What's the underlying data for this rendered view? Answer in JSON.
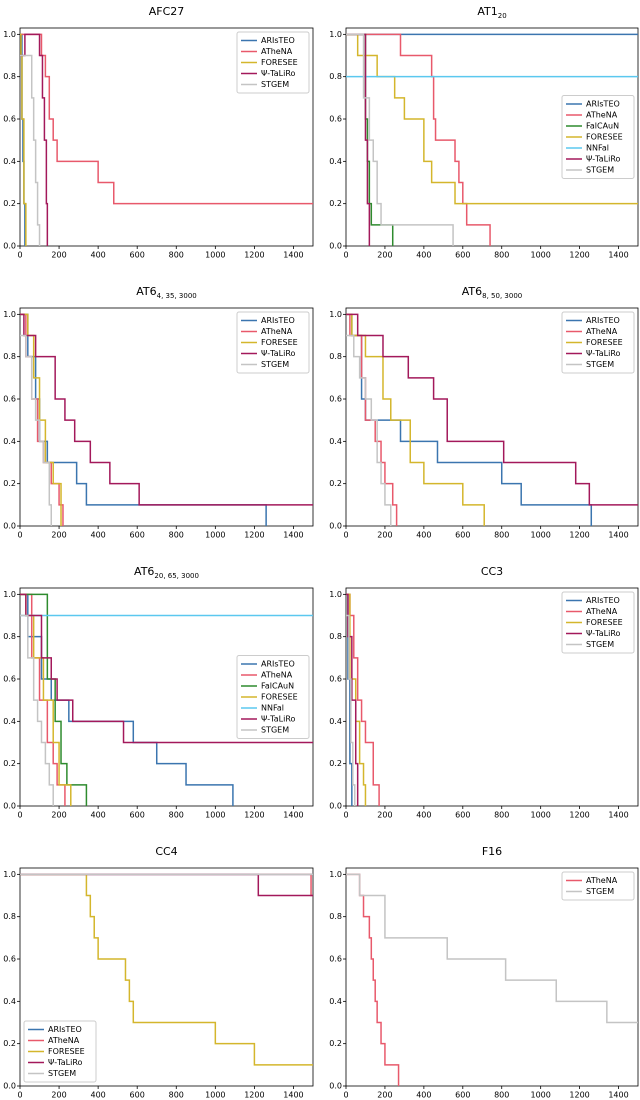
{
  "chart_data": [
    {
      "type": "step",
      "title": "AFC27",
      "xlim": [
        0,
        1500
      ],
      "ylim": [
        0,
        1.03
      ],
      "xticks": [
        0,
        200,
        400,
        600,
        800,
        1000,
        1200,
        1400
      ],
      "yticks": [
        {
          "value": 0,
          "label": "0.0"
        },
        0.2,
        0.4,
        0.6,
        0.8,
        {
          "value": 1,
          "label": "1.0"
        }
      ],
      "legend": "upper right",
      "series": [
        {
          "name": "ARIsTEO",
          "color": "#3b75af",
          "x": [
            0,
            10,
            15,
            20,
            25
          ],
          "values": [
            1,
            0.6,
            0.4,
            0.2,
            0
          ]
        },
        {
          "name": "ATheNA",
          "color": "#e8596b",
          "x": [
            0,
            110,
            130,
            150,
            170,
            190,
            400,
            480,
            1500
          ],
          "values": [
            1,
            0.9,
            0.8,
            0.6,
            0.5,
            0.4,
            0.3,
            0.2,
            0.2
          ]
        },
        {
          "name": "FORESEE",
          "color": "#d4b62c",
          "x": [
            0,
            5,
            10,
            20,
            30
          ],
          "values": [
            1,
            0.9,
            0.6,
            0.2,
            0
          ]
        },
        {
          "name": "Ψ-TaLiRo",
          "color": "#a3195b",
          "x": [
            0,
            25,
            100,
            115,
            125,
            135,
            140
          ],
          "values": [
            0.9,
            1,
            0.9,
            0.7,
            0.5,
            0.2,
            0
          ]
        },
        {
          "name": "STGEM",
          "color": "#c4c4c4",
          "x": [
            0,
            30,
            60,
            70,
            80,
            90,
            100
          ],
          "values": [
            0.9,
            0.9,
            0.7,
            0.5,
            0.3,
            0.1,
            0
          ]
        }
      ]
    },
    {
      "type": "step",
      "title": "AT1",
      "title_subscript": "20",
      "xlim": [
        0,
        1500
      ],
      "ylim": [
        0,
        1.03
      ],
      "xticks": [
        0,
        200,
        400,
        600,
        800,
        1000,
        1200,
        1400
      ],
      "yticks": [
        {
          "value": 0,
          "label": "0.0"
        },
        0.2,
        0.4,
        0.6,
        0.8,
        {
          "value": 1,
          "label": "1.0"
        }
      ],
      "legend": "center right",
      "series": [
        {
          "name": "ARIsTEO",
          "color": "#3b75af",
          "x": [
            0,
            1500
          ],
          "values": [
            1,
            1
          ]
        },
        {
          "name": "ATheNA",
          "color": "#e8596b",
          "x": [
            0,
            280,
            440,
            450,
            460,
            560,
            580,
            600,
            620,
            740
          ],
          "values": [
            1,
            0.9,
            0.8,
            0.6,
            0.5,
            0.4,
            0.3,
            0.2,
            0.1,
            0
          ]
        },
        {
          "name": "FalCAuN",
          "color": "#2e8b2e",
          "x": [
            0,
            100,
            110,
            120,
            130,
            240
          ],
          "values": [
            1,
            0.6,
            0.4,
            0.2,
            0.1,
            0
          ]
        },
        {
          "name": "FORESEE",
          "color": "#d4b62c",
          "x": [
            0,
            60,
            160,
            250,
            300,
            400,
            440,
            560,
            1500
          ],
          "values": [
            1,
            0.9,
            0.8,
            0.7,
            0.6,
            0.4,
            0.3,
            0.2,
            0.2
          ]
        },
        {
          "name": "NNFal",
          "color": "#5bc8ef",
          "x": [
            0,
            1500
          ],
          "values": [
            0.8,
            0.8
          ]
        },
        {
          "name": "Ψ-TaLiRo",
          "color": "#a3195b",
          "x": [
            0,
            100,
            110,
            120
          ],
          "values": [
            1,
            0.5,
            0.2,
            0
          ]
        },
        {
          "name": "STGEM",
          "color": "#c4c4c4",
          "x": [
            0,
            90,
            120,
            140,
            160,
            180,
            230,
            550
          ],
          "values": [
            1,
            0.7,
            0.5,
            0.4,
            0.2,
            0.1,
            0.1,
            0
          ]
        }
      ]
    },
    {
      "type": "step",
      "title": "AT6",
      "title_subscript": "4, 35, 3000",
      "xlim": [
        0,
        1500
      ],
      "ylim": [
        0,
        1.03
      ],
      "xticks": [
        0,
        200,
        400,
        600,
        800,
        1000,
        1200,
        1400
      ],
      "yticks": [
        {
          "value": 0,
          "label": "0.0"
        },
        0.2,
        0.4,
        0.6,
        0.8,
        {
          "value": 1,
          "label": "1.0"
        }
      ],
      "legend": "upper right",
      "series": [
        {
          "name": "ARIsTEO",
          "color": "#3b75af",
          "x": [
            0,
            40,
            80,
            100,
            140,
            290,
            340,
            1260
          ],
          "values": [
            1,
            0.8,
            0.6,
            0.4,
            0.3,
            0.2,
            0.1,
            0
          ]
        },
        {
          "name": "ATheNA",
          "color": "#e8596b",
          "x": [
            0,
            30,
            60,
            90,
            120,
            160,
            200,
            220
          ],
          "values": [
            1,
            0.8,
            0.6,
            0.4,
            0.3,
            0.2,
            0.1,
            0
          ]
        },
        {
          "name": "FORESEE",
          "color": "#d4b62c",
          "x": [
            0,
            40,
            70,
            100,
            130,
            170,
            210
          ],
          "values": [
            1,
            0.9,
            0.7,
            0.5,
            0.3,
            0.2,
            0
          ]
        },
        {
          "name": "Ψ-TaLiRo",
          "color": "#a3195b",
          "x": [
            0,
            20,
            80,
            180,
            230,
            280,
            360,
            460,
            610,
            1500
          ],
          "values": [
            1,
            0.9,
            0.8,
            0.6,
            0.5,
            0.4,
            0.3,
            0.2,
            0.1,
            0.1
          ]
        },
        {
          "name": "STGEM",
          "color": "#c4c4c4",
          "x": [
            0,
            30,
            60,
            80,
            100,
            120,
            150,
            160
          ],
          "values": [
            0.9,
            0.8,
            0.6,
            0.5,
            0.4,
            0.3,
            0.1,
            0
          ]
        }
      ]
    },
    {
      "type": "step",
      "title": "AT6",
      "title_subscript": "8, 50, 3000",
      "xlim": [
        0,
        1500
      ],
      "ylim": [
        0,
        1.03
      ],
      "xticks": [
        0,
        200,
        400,
        600,
        800,
        1000,
        1200,
        1400
      ],
      "yticks": [
        {
          "value": 0,
          "label": "0.0"
        },
        0.2,
        0.4,
        0.6,
        0.8,
        {
          "value": 1,
          "label": "1.0"
        }
      ],
      "legend": "upper right",
      "series": [
        {
          "name": "ARIsTEO",
          "color": "#3b75af",
          "x": [
            0,
            30,
            80,
            100,
            280,
            470,
            800,
            900,
            1260
          ],
          "values": [
            1,
            0.9,
            0.6,
            0.5,
            0.4,
            0.3,
            0.2,
            0.1,
            0
          ]
        },
        {
          "name": "ATheNA",
          "color": "#e8596b",
          "x": [
            0,
            20,
            80,
            100,
            150,
            180,
            200,
            240,
            260
          ],
          "values": [
            1,
            0.9,
            0.7,
            0.5,
            0.4,
            0.3,
            0.2,
            0.1,
            0
          ]
        },
        {
          "name": "FORESEE",
          "color": "#d4b62c",
          "x": [
            0,
            30,
            100,
            190,
            230,
            330,
            400,
            600,
            710
          ],
          "values": [
            1,
            0.9,
            0.8,
            0.6,
            0.5,
            0.3,
            0.2,
            0.1,
            0
          ]
        },
        {
          "name": "Ψ-TaLiRo",
          "color": "#a3195b",
          "x": [
            0,
            60,
            190,
            320,
            450,
            520,
            810,
            1180,
            1250,
            1500
          ],
          "values": [
            1,
            0.9,
            0.8,
            0.7,
            0.6,
            0.4,
            0.3,
            0.2,
            0.1,
            0.1
          ]
        },
        {
          "name": "STGEM",
          "color": "#c4c4c4",
          "x": [
            0,
            40,
            70,
            100,
            130,
            160,
            180,
            200,
            230
          ],
          "values": [
            0.9,
            0.8,
            0.7,
            0.6,
            0.5,
            0.3,
            0.2,
            0.1,
            0
          ]
        }
      ]
    },
    {
      "type": "step",
      "title": "AT6",
      "title_subscript": "20, 65, 3000",
      "xlim": [
        0,
        1500
      ],
      "ylim": [
        0,
        1.03
      ],
      "xticks": [
        0,
        200,
        400,
        600,
        800,
        1000,
        1200,
        1400
      ],
      "yticks": [
        {
          "value": 0,
          "label": "0.0"
        },
        0.2,
        0.4,
        0.6,
        0.8,
        {
          "value": 1,
          "label": "1.0"
        }
      ],
      "legend": "center right",
      "series": [
        {
          "name": "ARIsTEO",
          "color": "#3b75af",
          "x": [
            0,
            40,
            110,
            160,
            250,
            580,
            700,
            850,
            1090
          ],
          "values": [
            1,
            0.8,
            0.6,
            0.5,
            0.4,
            0.3,
            0.2,
            0.1,
            0
          ]
        },
        {
          "name": "ATheNA",
          "color": "#e8596b",
          "x": [
            0,
            60,
            100,
            140,
            170,
            190,
            230
          ],
          "values": [
            1,
            0.7,
            0.5,
            0.3,
            0.2,
            0.1,
            0
          ]
        },
        {
          "name": "FalCAuN",
          "color": "#2e8b2e",
          "x": [
            0,
            140,
            180,
            210,
            240,
            340
          ],
          "values": [
            1,
            0.6,
            0.4,
            0.2,
            0.1,
            0
          ]
        },
        {
          "name": "FORESEE",
          "color": "#d4b62c",
          "x": [
            0,
            30,
            70,
            120,
            170,
            200,
            260
          ],
          "values": [
            1,
            0.9,
            0.7,
            0.5,
            0.3,
            0.1,
            0
          ]
        },
        {
          "name": "NNFal",
          "color": "#5bc8ef",
          "x": [
            0,
            1500
          ],
          "values": [
            0.9,
            0.9
          ]
        },
        {
          "name": "Ψ-TaLiRo",
          "color": "#a3195b",
          "x": [
            0,
            30,
            110,
            160,
            190,
            270,
            530,
            1500
          ],
          "values": [
            1,
            0.9,
            0.7,
            0.6,
            0.5,
            0.4,
            0.3,
            0.3
          ]
        },
        {
          "name": "STGEM",
          "color": "#c4c4c4",
          "x": [
            0,
            40,
            70,
            90,
            110,
            130,
            150,
            170
          ],
          "values": [
            0.9,
            0.7,
            0.5,
            0.4,
            0.3,
            0.2,
            0.1,
            0
          ]
        }
      ]
    },
    {
      "type": "step",
      "title": "CC3",
      "xlim": [
        0,
        1500
      ],
      "ylim": [
        0,
        1.03
      ],
      "xticks": [
        0,
        200,
        400,
        600,
        800,
        1000,
        1200,
        1400
      ],
      "yticks": [
        {
          "value": 0,
          "label": "0.0"
        },
        0.2,
        0.4,
        0.6,
        0.8,
        {
          "value": 1,
          "label": "1.0"
        }
      ],
      "legend": "upper right",
      "series": [
        {
          "name": "ARIsTEO",
          "color": "#3b75af",
          "x": [
            0,
            10,
            20,
            30
          ],
          "values": [
            1,
            0.6,
            0.2,
            0
          ]
        },
        {
          "name": "ATheNA",
          "color": "#e8596b",
          "x": [
            0,
            20,
            40,
            60,
            80,
            100,
            140,
            170
          ],
          "values": [
            1,
            0.9,
            0.7,
            0.5,
            0.4,
            0.3,
            0.1,
            0
          ]
        },
        {
          "name": "FORESEE",
          "color": "#d4b62c",
          "x": [
            0,
            20,
            50,
            70,
            90,
            100
          ],
          "values": [
            1,
            0.6,
            0.4,
            0.2,
            0.1,
            0
          ]
        },
        {
          "name": "Ψ-TaLiRo",
          "color": "#a3195b",
          "x": [
            0,
            10,
            30,
            50,
            60
          ],
          "values": [
            1,
            0.8,
            0.5,
            0.2,
            0
          ]
        },
        {
          "name": "STGEM",
          "color": "#c4c4c4",
          "x": [
            0,
            15,
            25,
            35,
            45
          ],
          "values": [
            0.9,
            0.6,
            0.3,
            0.1,
            0
          ]
        }
      ]
    },
    {
      "type": "step",
      "title": "CC4",
      "xlim": [
        0,
        1500
      ],
      "ylim": [
        0,
        1.03
      ],
      "xticks": [
        0,
        200,
        400,
        600,
        800,
        1000,
        1200,
        1400
      ],
      "yticks": [
        {
          "value": 0,
          "label": "0.0"
        },
        0.2,
        0.4,
        0.6,
        0.8,
        {
          "value": 1,
          "label": "1.0"
        }
      ],
      "legend": "lower left",
      "series": [
        {
          "name": "ARIsTEO",
          "color": "#3b75af",
          "x": [
            0,
            1500
          ],
          "values": [
            1,
            1
          ]
        },
        {
          "name": "ATheNA",
          "color": "#e8596b",
          "x": [
            0,
            1490,
            1500
          ],
          "values": [
            1,
            0.9,
            0.9
          ]
        },
        {
          "name": "FORESEE",
          "color": "#d4b62c",
          "x": [
            0,
            340,
            360,
            380,
            400,
            540,
            560,
            580,
            1000,
            1200,
            1500
          ],
          "values": [
            1,
            0.9,
            0.8,
            0.7,
            0.6,
            0.5,
            0.4,
            0.3,
            0.2,
            0.1,
            0.1
          ]
        },
        {
          "name": "Ψ-TaLiRo",
          "color": "#a3195b",
          "x": [
            0,
            1220,
            1500
          ],
          "values": [
            1,
            0.9,
            0.9
          ]
        },
        {
          "name": "STGEM",
          "color": "#c4c4c4",
          "x": [
            0,
            1500
          ],
          "values": [
            1,
            1
          ]
        }
      ]
    },
    {
      "type": "step",
      "title": "F16",
      "xlim": [
        0,
        1500
      ],
      "ylim": [
        0,
        1.03
      ],
      "xticks": [
        0,
        200,
        400,
        600,
        800,
        1000,
        1200,
        1400
      ],
      "yticks": [
        {
          "value": 0,
          "label": "0.0"
        },
        0.2,
        0.4,
        0.6,
        0.8,
        {
          "value": 1,
          "label": "1.0"
        }
      ],
      "legend": "upper right",
      "series": [
        {
          "name": "ATheNA",
          "color": "#e8596b",
          "x": [
            0,
            70,
            90,
            120,
            130,
            140,
            150,
            160,
            180,
            200,
            270
          ],
          "values": [
            1,
            0.9,
            0.8,
            0.7,
            0.6,
            0.5,
            0.4,
            0.3,
            0.2,
            0.1,
            0
          ]
        },
        {
          "name": "STGEM",
          "color": "#c4c4c4",
          "x": [
            0,
            70,
            200,
            520,
            820,
            1080,
            1340,
            1500
          ],
          "values": [
            1,
            0.9,
            0.7,
            0.6,
            0.5,
            0.4,
            0.3,
            0.3
          ]
        }
      ]
    }
  ]
}
